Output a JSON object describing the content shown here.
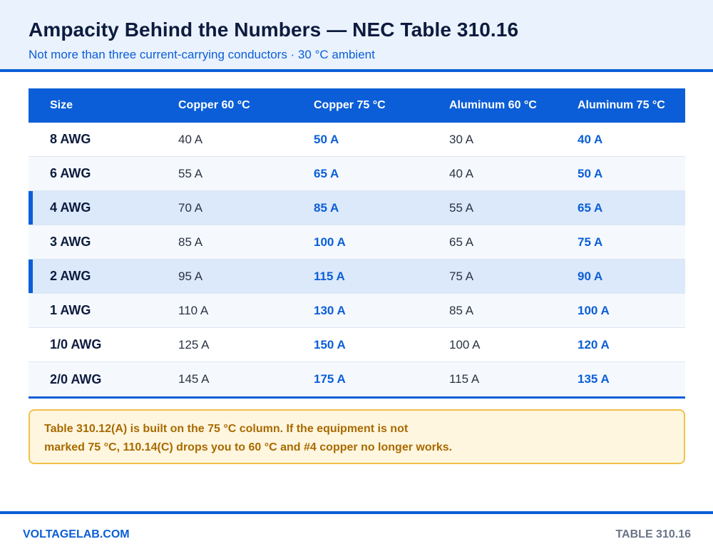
{
  "header": {
    "title": "Ampacity Behind the Numbers — NEC Table 310.16",
    "subtitle": "Not more than three current-carrying conductors · 30 °C ambient"
  },
  "table": {
    "columns": [
      "Size",
      "Copper 60 °C",
      "Copper 75 °C",
      "Aluminum 60 °C",
      "Aluminum 75 °C"
    ],
    "rows": [
      {
        "size": "8 AWG",
        "cu60": "40 A",
        "cu75": "50 A",
        "al60": "30 A",
        "al75": "40 A"
      },
      {
        "size": "6 AWG",
        "cu60": "55 A",
        "cu75": "65 A",
        "al60": "40 A",
        "al75": "50 A"
      },
      {
        "size": "4 AWG",
        "cu60": "70 A",
        "cu75": "85 A",
        "al60": "55 A",
        "al75": "65 A",
        "highlighted": true
      },
      {
        "size": "3 AWG",
        "cu60": "85 A",
        "cu75": "100 A",
        "al60": "65 A",
        "al75": "75 A"
      },
      {
        "size": "2 AWG",
        "cu60": "95 A",
        "cu75": "115 A",
        "al60": "75 A",
        "al75": "90 A",
        "highlighted": true
      },
      {
        "size": "1 AWG",
        "cu60": "110 A",
        "cu75": "130 A",
        "al60": "85 A",
        "al75": "100 A"
      },
      {
        "size": "1/0 AWG",
        "cu60": "125 A",
        "cu75": "150 A",
        "al60": "100 A",
        "al75": "120 A"
      },
      {
        "size": "2/0 AWG",
        "cu60": "145 A",
        "cu75": "175 A",
        "al60": "115 A",
        "al75": "135 A"
      }
    ]
  },
  "note": {
    "lines": [
      "Table 310.12(A) is built on the 75 °C column. If the equipment is not",
      "marked 75 °C, 110.14(C) drops you to 60 °C and #4 copper no longer works."
    ]
  },
  "footer": {
    "brand": "VOLTAGELAB.COM",
    "reference": "TABLE 310.16"
  },
  "colors": {
    "accent": "#0b5ed7",
    "header_bg": "#eaf2fd",
    "highlight_row": "#dce9fb",
    "note_bg": "#fff6df",
    "note_border": "#f0c24a",
    "note_text": "#a86a00"
  }
}
